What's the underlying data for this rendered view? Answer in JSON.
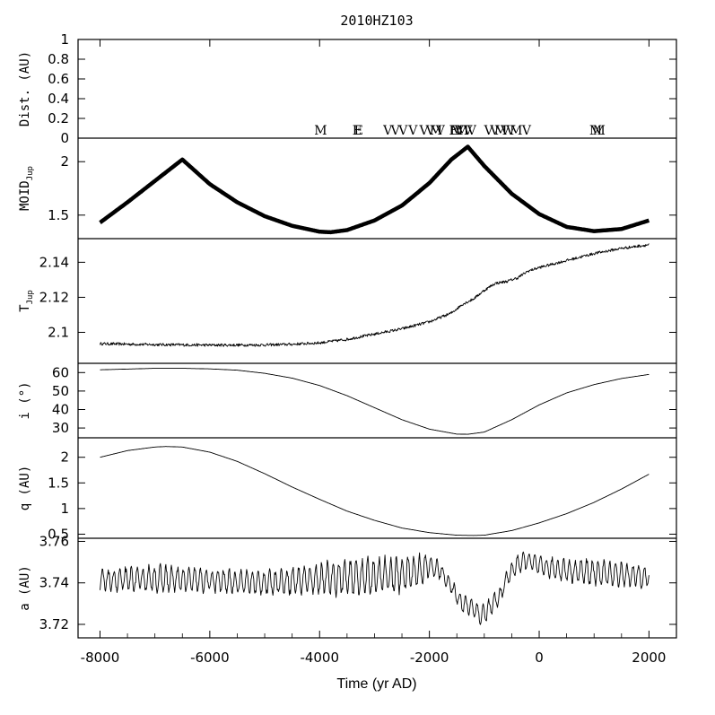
{
  "chart_data": {
    "type": "line",
    "title": "2010HZ103",
    "xlabel": "Time (yr AD)",
    "xlim": [
      -8400,
      2500
    ],
    "xticks": [
      -8000,
      -6000,
      -4000,
      -2000,
      0,
      2000
    ],
    "panels": [
      {
        "id": "dist",
        "ylabel": "Dist. (AU)",
        "ylim": [
          0,
          1
        ],
        "yticks": [
          0,
          0.2,
          0.4,
          0.6,
          0.8,
          1
        ],
        "encounters": [
          {
            "x": -3980,
            "label": "M"
          },
          {
            "x": -3320,
            "label": "E"
          },
          {
            "x": -3290,
            "label": "E"
          },
          {
            "x": -2760,
            "label": "V"
          },
          {
            "x": -2620,
            "label": "V"
          },
          {
            "x": -2480,
            "label": "V"
          },
          {
            "x": -2300,
            "label": "V"
          },
          {
            "x": -2100,
            "label": "V"
          },
          {
            "x": -1980,
            "label": "V"
          },
          {
            "x": -1880,
            "label": "M"
          },
          {
            "x": -1800,
            "label": "V"
          },
          {
            "x": -1560,
            "label": "E"
          },
          {
            "x": -1500,
            "label": "M"
          },
          {
            "x": -1460,
            "label": "V"
          },
          {
            "x": -1400,
            "label": "M"
          },
          {
            "x": -1300,
            "label": "V"
          },
          {
            "x": -1230,
            "label": "V"
          },
          {
            "x": -920,
            "label": "V"
          },
          {
            "x": -810,
            "label": "V"
          },
          {
            "x": -700,
            "label": "M"
          },
          {
            "x": -620,
            "label": "V"
          },
          {
            "x": -520,
            "label": "V"
          },
          {
            "x": -420,
            "label": "M"
          },
          {
            "x": -230,
            "label": "V"
          },
          {
            "x": 1030,
            "label": "M"
          },
          {
            "x": 1090,
            "label": "M"
          }
        ]
      },
      {
        "id": "moid",
        "ylabel": "MOID",
        "ylabel_sub": "Jup",
        "ylim": [
          1.28,
          2.22
        ],
        "yticks": [
          1.5,
          2
        ],
        "yticklabels": [
          "1.5",
          "2"
        ],
        "style": "thick",
        "x": [
          -8000,
          -7500,
          -7000,
          -6500,
          -6000,
          -5500,
          -5000,
          -4500,
          -4000,
          -3800,
          -3500,
          -3000,
          -2500,
          -2000,
          -1600,
          -1300,
          -1000,
          -500,
          0,
          500,
          1000,
          1500,
          2000
        ],
        "y": [
          1.43,
          1.62,
          1.82,
          2.02,
          1.79,
          1.62,
          1.49,
          1.4,
          1.345,
          1.34,
          1.36,
          1.45,
          1.59,
          1.8,
          2.02,
          2.14,
          1.96,
          1.7,
          1.51,
          1.39,
          1.35,
          1.37,
          1.45
        ]
      },
      {
        "id": "tjup",
        "ylabel": "T",
        "ylabel_sub": "Jup",
        "ylim": [
          2.0823,
          2.1535
        ],
        "yticks": [
          2.1,
          2.12,
          2.14
        ],
        "yticklabels": [
          "2.1",
          "2.12",
          "2.14"
        ],
        "noise": 0.0008,
        "x": [
          -8000,
          -7000,
          -6000,
          -5000,
          -4500,
          -4000,
          -3500,
          -3000,
          -2500,
          -2000,
          -1600,
          -1400,
          -1200,
          -1000,
          -800,
          -600,
          -400,
          -200,
          0,
          500,
          1000,
          1500,
          2000
        ],
        "y": [
          2.0935,
          2.093,
          2.0927,
          2.0928,
          2.0932,
          2.094,
          2.096,
          2.099,
          2.102,
          2.106,
          2.111,
          2.116,
          2.119,
          2.124,
          2.128,
          2.129,
          2.131,
          2.135,
          2.137,
          2.141,
          2.145,
          2.148,
          2.15
        ]
      },
      {
        "id": "incl",
        "ylabel": "i (°)",
        "ylim": [
          24.7,
          65
        ],
        "yticks": [
          30,
          40,
          50,
          60
        ],
        "yticklabels": [
          "30",
          "40",
          "50",
          "60"
        ],
        "x": [
          -8000,
          -7000,
          -6500,
          -6000,
          -5500,
          -5000,
          -4500,
          -4000,
          -3500,
          -3000,
          -2500,
          -2000,
          -1500,
          -1300,
          -1000,
          -500,
          0,
          500,
          1000,
          1500,
          2000
        ],
        "y": [
          61.5,
          62.3,
          62.3,
          62.0,
          61.3,
          59.6,
          57.0,
          53.0,
          47.5,
          41.0,
          34.5,
          29.4,
          26.7,
          26.6,
          27.8,
          34.5,
          42.5,
          49.0,
          53.5,
          56.8,
          59.0
        ]
      },
      {
        "id": "q",
        "ylabel": "q (AU)",
        "ylim": [
          0.42,
          2.38
        ],
        "yticks": [
          0.5,
          1,
          1.5,
          2
        ],
        "yticklabels": [
          "0.5",
          "1",
          "1.5",
          "2"
        ],
        "x": [
          -8000,
          -7500,
          -7000,
          -6800,
          -6500,
          -6000,
          -5500,
          -5000,
          -4500,
          -4000,
          -3500,
          -3000,
          -2500,
          -2000,
          -1500,
          -1200,
          -1000,
          -500,
          0,
          500,
          1000,
          1500,
          2000
        ],
        "y": [
          2.0,
          2.13,
          2.2,
          2.21,
          2.2,
          2.1,
          1.92,
          1.68,
          1.42,
          1.18,
          0.95,
          0.77,
          0.62,
          0.53,
          0.48,
          0.475,
          0.48,
          0.57,
          0.72,
          0.9,
          1.12,
          1.38,
          1.67
        ]
      },
      {
        "id": "a",
        "ylabel": "a (AU)",
        "ylim": [
          3.7135,
          3.7615
        ],
        "yticks": [
          3.72,
          3.74,
          3.76
        ],
        "yticklabels": [
          "3.72",
          "3.74",
          "3.76"
        ],
        "osc_period": 105,
        "x": [
          -8000,
          -7000,
          -6000,
          -5000,
          -4000,
          -3000,
          -2500,
          -2200,
          -2000,
          -1800,
          -1600,
          -1400,
          -1200,
          -1050,
          -900,
          -700,
          -600,
          -400,
          -200,
          0,
          500,
          1000,
          1500,
          2000
        ],
        "y": [
          3.741,
          3.742,
          3.741,
          3.74,
          3.742,
          3.743,
          3.744,
          3.746,
          3.748,
          3.746,
          3.738,
          3.73,
          3.728,
          3.724,
          3.728,
          3.734,
          3.742,
          3.749,
          3.751,
          3.748,
          3.746,
          3.745,
          3.744,
          3.743
        ],
        "amp": [
          0.005,
          0.006,
          0.005,
          0.005,
          0.007,
          0.008,
          0.008,
          0.007,
          0.005,
          0.004,
          0.003,
          0.004,
          0.004,
          0.005,
          0.004,
          0.004,
          0.003,
          0.004,
          0.004,
          0.004,
          0.005,
          0.006,
          0.005,
          0.005
        ]
      }
    ]
  }
}
